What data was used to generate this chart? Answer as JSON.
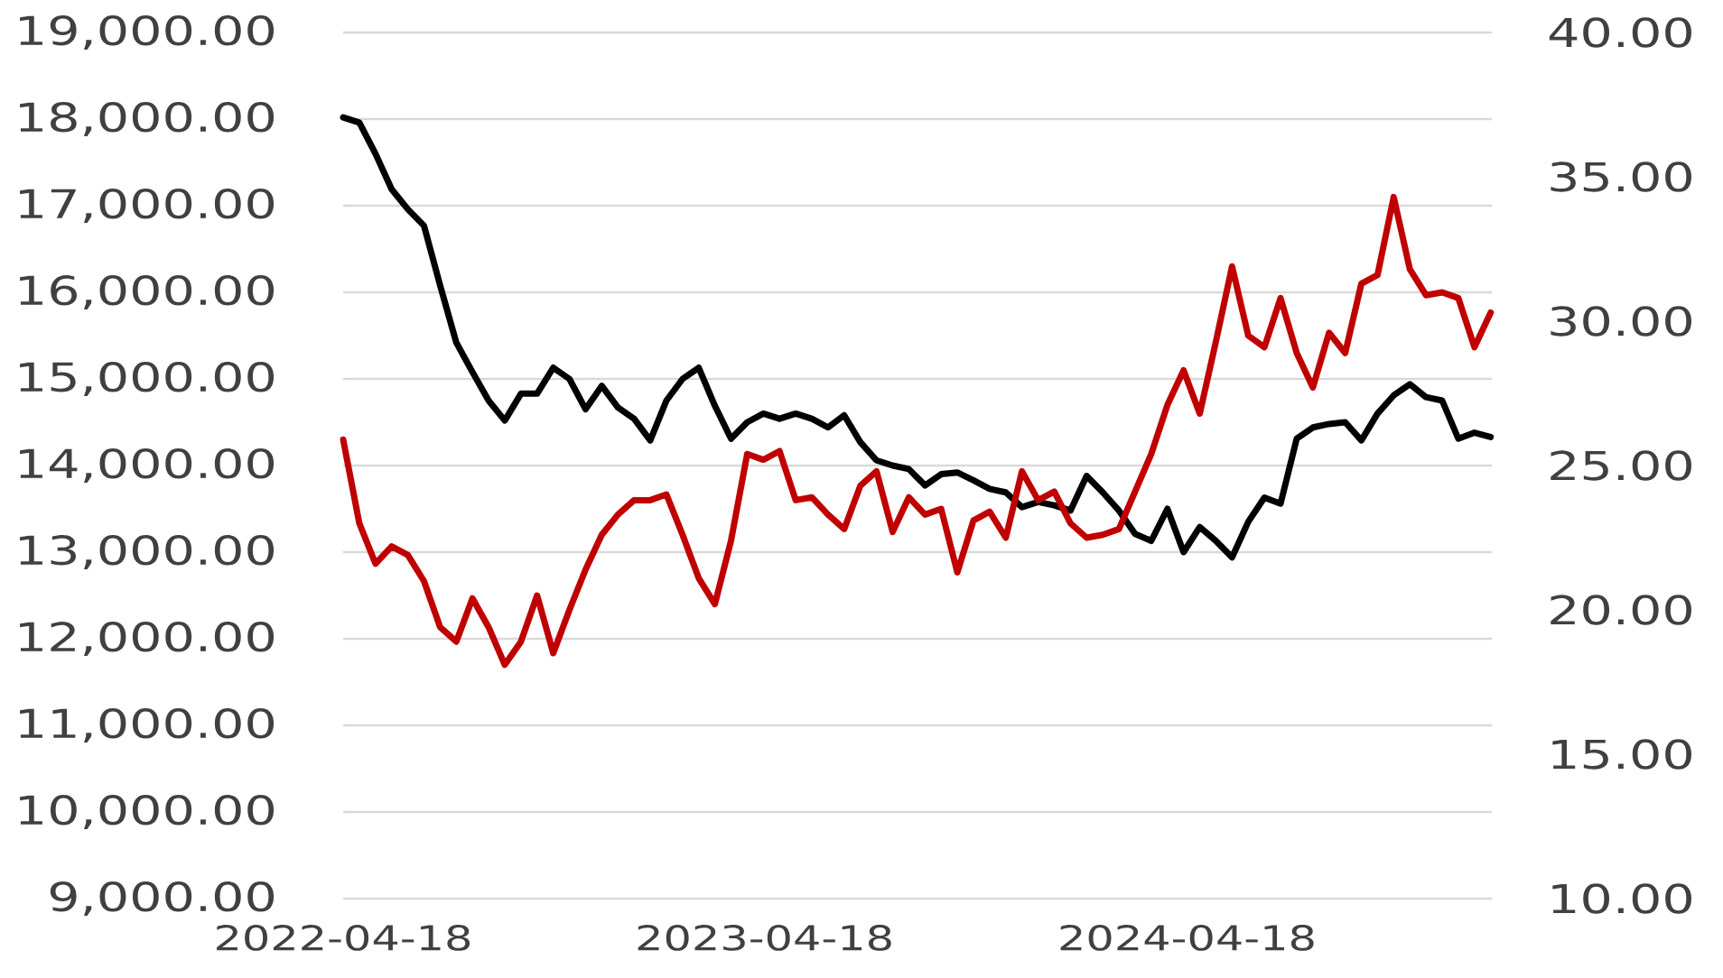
{
  "chart_data": {
    "type": "line",
    "x": [
      "2022-04-18",
      "2022-05-02",
      "2022-05-16",
      "2022-05-30",
      "2022-06-13",
      "2022-06-27",
      "2022-07-11",
      "2022-07-25",
      "2022-08-08",
      "2022-08-22",
      "2022-09-05",
      "2022-09-19",
      "2022-10-03",
      "2022-10-17",
      "2022-10-31",
      "2022-11-14",
      "2022-11-28",
      "2022-12-12",
      "2022-12-26",
      "2023-01-09",
      "2023-01-23",
      "2023-02-06",
      "2023-02-20",
      "2023-03-06",
      "2023-03-20",
      "2023-04-03",
      "2023-04-17",
      "2023-05-01",
      "2023-05-15",
      "2023-05-29",
      "2023-06-12",
      "2023-06-26",
      "2023-07-10",
      "2023-07-24",
      "2023-08-07",
      "2023-08-21",
      "2023-09-04",
      "2023-09-18",
      "2023-10-02",
      "2023-10-16",
      "2023-10-30",
      "2023-11-13",
      "2023-11-27",
      "2023-12-11",
      "2023-12-25",
      "2024-01-08",
      "2024-01-22",
      "2024-02-05",
      "2024-02-19",
      "2024-03-04",
      "2024-03-18",
      "2024-04-01",
      "2024-04-15",
      "2024-04-29",
      "2024-05-13",
      "2024-05-27",
      "2024-06-10",
      "2024-06-24",
      "2024-07-08",
      "2024-07-22",
      "2024-08-05",
      "2024-08-19",
      "2024-09-02",
      "2024-09-16",
      "2024-09-30",
      "2024-10-14",
      "2024-10-28",
      "2024-11-11",
      "2024-11-25",
      "2024-12-09",
      "2024-12-23",
      "2025-01-06"
    ],
    "series": [
      {
        "color": "#000000",
        "values": [
          18020,
          17960,
          17600,
          17190,
          16960,
          16770,
          16080,
          15420,
          15080,
          14750,
          14520,
          14830,
          14830,
          15130,
          15000,
          14650,
          14920,
          14670,
          14540,
          14290,
          14750,
          15000,
          15130,
          14690,
          14310,
          14500,
          14600,
          14540,
          14600,
          14540,
          14440,
          14580,
          14270,
          14060,
          14000,
          13960,
          13770,
          13900,
          13920,
          13830,
          13730,
          13690,
          13520,
          13580,
          13540,
          13480,
          13880,
          13690,
          13480,
          13210,
          13130,
          13500,
          13000,
          13290,
          13130,
          12940,
          13350,
          13630,
          13560,
          14310,
          14440,
          14480,
          14500,
          14290,
          14600,
          14810,
          14940,
          14790,
          14750,
          14310,
          14380,
          14330
        ]
      },
      {
        "color": "#c00000",
        "axis": "y2",
        "values": [
          25.9,
          23.0,
          21.6,
          22.2,
          21.9,
          21.0,
          19.4,
          18.9,
          20.4,
          19.4,
          18.1,
          18.9,
          20.5,
          18.5,
          20.0,
          21.4,
          22.6,
          23.3,
          23.8,
          23.8,
          24.0,
          22.6,
          21.1,
          20.2,
          22.4,
          25.4,
          25.2,
          25.5,
          23.8,
          23.9,
          23.3,
          22.8,
          24.3,
          24.8,
          22.7,
          23.9,
          23.3,
          23.5,
          21.3,
          23.1,
          23.4,
          22.5,
          24.8,
          23.8,
          24.1,
          23.0,
          22.5,
          22.6,
          22.8,
          24.1,
          25.4,
          27.1,
          28.3,
          26.8,
          29.3,
          31.9,
          29.5,
          29.1,
          30.8,
          28.9,
          27.7,
          29.6,
          28.9,
          31.3,
          31.6,
          34.3,
          31.8,
          30.9,
          31.0,
          30.8,
          29.1,
          30.3
        ]
      }
    ],
    "xlim": [
      "2022-04-18",
      "2025-01-07"
    ],
    "xticks": [
      "2022-04-18",
      "2023-04-18",
      "2024-04-18"
    ],
    "ylim": [
      9000,
      19000
    ],
    "yticks": [
      {
        "value": 9000,
        "label": "9,000.00"
      },
      {
        "value": 10000,
        "label": "10,000.00"
      },
      {
        "value": 11000,
        "label": "11,000.00"
      },
      {
        "value": 12000,
        "label": "12,000.00"
      },
      {
        "value": 13000,
        "label": "13,000.00"
      },
      {
        "value": 14000,
        "label": "14,000.00"
      },
      {
        "value": 15000,
        "label": "15,000.00"
      },
      {
        "value": 16000,
        "label": "16,000.00"
      },
      {
        "value": 17000,
        "label": "17,000.00"
      },
      {
        "value": 18000,
        "label": "18,000.00"
      },
      {
        "value": 19000,
        "label": "19,000.00"
      }
    ],
    "y2lim": [
      10,
      40
    ],
    "y2ticks": [
      {
        "value": 10,
        "label": "10.00"
      },
      {
        "value": 15,
        "label": "15.00"
      },
      {
        "value": 20,
        "label": "20.00"
      },
      {
        "value": 25,
        "label": "25.00"
      },
      {
        "value": 30,
        "label": "30.00"
      },
      {
        "value": 35,
        "label": "35.00"
      },
      {
        "value": 40,
        "label": "40.00"
      }
    ],
    "grid": "y"
  }
}
